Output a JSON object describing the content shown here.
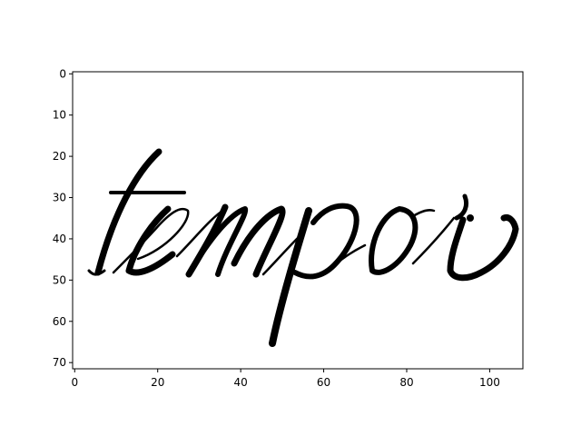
{
  "chart_data": {
    "type": "heatmap",
    "title": "",
    "xlabel": "",
    "ylabel": "",
    "colormap": "binary",
    "image_content": "tempor",
    "xlim": [
      -0.5,
      108
    ],
    "ylim": [
      71.5,
      -0.5
    ],
    "xticks": [
      0,
      20,
      40,
      60,
      80,
      100
    ],
    "yticks": [
      0,
      10,
      20,
      30,
      40,
      50,
      60,
      70
    ],
    "colors": {
      "ink": "#000000",
      "background": "#ffffff",
      "axis": "#000000"
    }
  }
}
